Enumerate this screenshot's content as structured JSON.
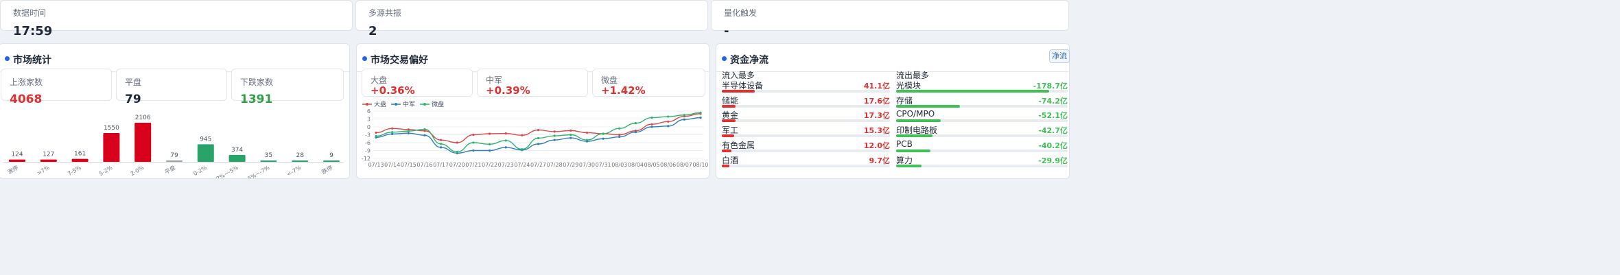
{
  "top_stats": [
    {
      "label": "数据时间",
      "value": "17:59"
    },
    {
      "label": "多源共振",
      "value": "2"
    },
    {
      "label": "量化触发",
      "value": "-"
    }
  ],
  "market_stats": {
    "title": "市场统计",
    "cards": [
      {
        "label": "上涨家数",
        "value": "4068",
        "color": "#e03131"
      },
      {
        "label": "平盘",
        "value": "79",
        "color": "#1f2937"
      },
      {
        "label": "下跌家数",
        "value": "1391",
        "color": "#2f9e44"
      }
    ]
  },
  "trading_pref": {
    "title": "市场交易偏好",
    "cards": [
      {
        "label": "大盘",
        "value": "+0.36%"
      },
      {
        "label": "中军",
        "value": "+0.39%"
      },
      {
        "label": "微盘",
        "value": "+1.42%"
      }
    ]
  },
  "capital_flow": {
    "title": "资金净流",
    "button_label": "净流",
    "inflow_header": "流入最多",
    "outflow_header": "流出最多",
    "unit": "亿",
    "inflow": [
      {
        "name": "半导体设备",
        "value": "41.1亿",
        "amount": 41.1
      },
      {
        "name": "储能",
        "value": "17.6亿",
        "amount": 17.6
      },
      {
        "name": "黄金",
        "value": "17.3亿",
        "amount": 17.3
      },
      {
        "name": "军工",
        "value": "15.3亿",
        "amount": 15.3
      },
      {
        "name": "有色金属",
        "value": "12.0亿",
        "amount": 12.0
      },
      {
        "name": "白酒",
        "value": "9.7亿",
        "amount": 9.7
      }
    ],
    "outflow": [
      {
        "name": "光模块",
        "value": "-178.7亿",
        "amount": 178.7
      },
      {
        "name": "存储",
        "value": "-74.2亿",
        "amount": 74.2
      },
      {
        "name": "CPO/MPO",
        "value": "-52.1亿",
        "amount": 52.1
      },
      {
        "name": "印制电路板",
        "value": "-42.7亿",
        "amount": 42.7
      },
      {
        "name": "PCB",
        "value": "-40.2亿",
        "amount": 40.2
      },
      {
        "name": "算力",
        "value": "-29.9亿",
        "amount": 29.9
      }
    ],
    "colors": {
      "inflow": "#e03131",
      "outflow": "#40c057"
    }
  },
  "chart_data": [
    {
      "type": "bar",
      "categories": [
        "涨停",
        ">7%",
        "7-5%",
        "5-2%",
        "2-0%",
        "平盘",
        "0-2%",
        "-2%~-5%",
        "-5%~-7%",
        "<-7%",
        "跌停"
      ],
      "values": [
        124,
        127,
        161,
        1550,
        2106,
        79,
        945,
        374,
        35,
        28,
        9
      ],
      "colors": [
        "#d9001b",
        "#d9001b",
        "#d9001b",
        "#d9001b",
        "#d9001b",
        "#9ca3af",
        "#2aa36b",
        "#2aa36b",
        "#2aa36b",
        "#2aa36b",
        "#2aa36b"
      ],
      "ylim": [
        0,
        2106
      ]
    },
    {
      "type": "line",
      "x": [
        "07/13",
        "07/14",
        "07/15",
        "07/16",
        "07/17",
        "07/20",
        "07/21",
        "07/22",
        "07/23",
        "07/24",
        "07/27",
        "07/28",
        "07/29",
        "07/30",
        "07/31",
        "08/03",
        "08/04",
        "08/05",
        "08/06",
        "08/07",
        "08/10"
      ],
      "series": [
        {
          "name": "大盘",
          "color": "#d94848",
          "values": [
            -2.2,
            -0.6,
            -1.0,
            -1.5,
            -5.0,
            -6.0,
            -3.0,
            -2.6,
            -2.5,
            -3.2,
            -1.2,
            -1.8,
            -1.4,
            -2.2,
            -2.6,
            -3.0,
            -1.5,
            1.0,
            2.0,
            4.0,
            5.0
          ]
        },
        {
          "name": "中军",
          "color": "#2f7fb5",
          "values": [
            -4.0,
            -2.7,
            -2.4,
            -3.2,
            -7.8,
            -10.0,
            -9.0,
            -9.0,
            -7.8,
            -8.8,
            -6.5,
            -5.0,
            -4.2,
            -5.5,
            -4.5,
            -3.8,
            -2.0,
            0.0,
            0.3,
            2.8,
            3.5
          ]
        },
        {
          "name": "微盘",
          "color": "#2db36b",
          "values": [
            -3.5,
            -2.0,
            -1.6,
            -0.9,
            -6.5,
            -9.5,
            -6.0,
            -6.6,
            -5.2,
            -8.5,
            -4.3,
            -3.4,
            -3.0,
            -5.0,
            -2.6,
            -0.6,
            1.4,
            3.5,
            3.9,
            4.5,
            5.4
          ]
        }
      ],
      "yticks": [
        6,
        3,
        0,
        -3,
        -6,
        -9,
        -12
      ],
      "ylim": [
        -12,
        6
      ]
    }
  ]
}
